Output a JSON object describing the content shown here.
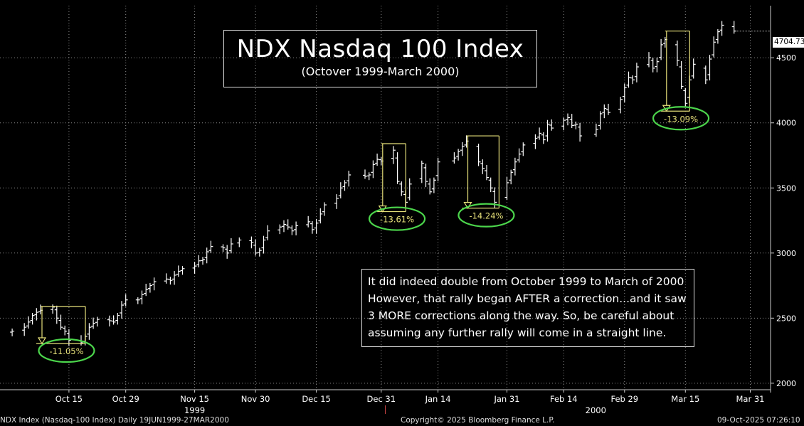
{
  "chart_data": {
    "type": "bar",
    "subtype": "ohlc",
    "title": "NDX Nasdaq 100 Index",
    "subtitle": "(Octover 1999-March 2000)",
    "ylim": [
      1950,
      4900
    ],
    "yticks": [
      2000,
      2500,
      3000,
      3500,
      4000,
      4500
    ],
    "x_tick_labels": [
      "Oct 15",
      "Oct 29",
      "Nov 15",
      "Nov 30",
      "Dec 15",
      "Dec 31",
      "Jan 14",
      "Jan 31",
      "Feb 14",
      "Feb 29",
      "Mar 15",
      "Mar 31"
    ],
    "year_labels": [
      "1999",
      "2000"
    ],
    "last_value": "4704.73",
    "corrections": [
      {
        "label": "-11.05%",
        "start_date": "1999-10-08",
        "end_date": "1999-10-18",
        "top": 2590,
        "bottom": 2305
      },
      {
        "label": "-13.61%",
        "start_date": "1999-12-31",
        "end_date": "2000-01-05",
        "top": 3840,
        "bottom": 3318
      },
      {
        "label": "-14.24%",
        "start_date": "2000-01-21",
        "end_date": "2000-01-28",
        "top": 3900,
        "bottom": 3345
      },
      {
        "label": "-13.09%",
        "start_date": "2000-03-10",
        "end_date": "2000-03-15",
        "top": 4705,
        "bottom": 4090
      }
    ],
    "series": [
      {
        "name": "NDX Index",
        "values": [
          [
            "1999-10-01",
            2400
          ],
          [
            "1999-10-04",
            2430
          ],
          [
            "1999-10-05",
            2470
          ],
          [
            "1999-10-06",
            2520
          ],
          [
            "1999-10-07",
            2545
          ],
          [
            "1999-10-08",
            2560
          ],
          [
            "1999-10-11",
            2585
          ],
          [
            "1999-10-12",
            2500
          ],
          [
            "1999-10-13",
            2430
          ],
          [
            "1999-10-14",
            2400
          ],
          [
            "1999-10-15",
            2330
          ],
          [
            "1999-10-18",
            2310
          ],
          [
            "1999-10-19",
            2360
          ],
          [
            "1999-10-20",
            2430
          ],
          [
            "1999-10-21",
            2460
          ],
          [
            "1999-10-22",
            2490
          ],
          [
            "1999-10-25",
            2480
          ],
          [
            "1999-10-26",
            2470
          ],
          [
            "1999-10-27",
            2520
          ],
          [
            "1999-10-28",
            2600
          ],
          [
            "1999-10-29",
            2640
          ],
          [
            "1999-11-01",
            2640
          ],
          [
            "1999-11-02",
            2680
          ],
          [
            "1999-11-03",
            2720
          ],
          [
            "1999-11-04",
            2750
          ],
          [
            "1999-11-05",
            2780
          ],
          [
            "1999-11-08",
            2800
          ],
          [
            "1999-11-09",
            2790
          ],
          [
            "1999-11-10",
            2830
          ],
          [
            "1999-11-11",
            2860
          ],
          [
            "1999-11-12",
            2880
          ],
          [
            "1999-11-15",
            2900
          ],
          [
            "1999-11-16",
            2940
          ],
          [
            "1999-11-17",
            2950
          ],
          [
            "1999-11-18",
            3010
          ],
          [
            "1999-11-19",
            3050
          ],
          [
            "1999-11-22",
            3040
          ],
          [
            "1999-11-23",
            3000
          ],
          [
            "1999-11-24",
            3070
          ],
          [
            "1999-11-26",
            3100
          ],
          [
            "1999-11-29",
            3080
          ],
          [
            "1999-11-30",
            3000
          ],
          [
            "1999-12-01",
            3020
          ],
          [
            "1999-12-02",
            3100
          ],
          [
            "1999-12-03",
            3170
          ],
          [
            "1999-12-06",
            3200
          ],
          [
            "1999-12-07",
            3220
          ],
          [
            "1999-12-08",
            3200
          ],
          [
            "1999-12-09",
            3170
          ],
          [
            "1999-12-10",
            3210
          ],
          [
            "1999-12-13",
            3240
          ],
          [
            "1999-12-14",
            3180
          ],
          [
            "1999-12-15",
            3230
          ],
          [
            "1999-12-16",
            3300
          ],
          [
            "1999-12-17",
            3370
          ],
          [
            "1999-12-20",
            3420
          ],
          [
            "1999-12-21",
            3500
          ],
          [
            "1999-12-22",
            3540
          ],
          [
            "1999-12-23",
            3600
          ],
          [
            "1999-12-27",
            3590
          ],
          [
            "1999-12-28",
            3600
          ],
          [
            "1999-12-29",
            3680
          ],
          [
            "1999-12-30",
            3720
          ],
          [
            "1999-12-31",
            3707
          ],
          [
            "2000-01-03",
            3790
          ],
          [
            "2000-01-04",
            3550
          ],
          [
            "2000-01-05",
            3470
          ],
          [
            "2000-01-06",
            3390
          ],
          [
            "2000-01-07",
            3530
          ],
          [
            "2000-01-10",
            3690
          ],
          [
            "2000-01-11",
            3550
          ],
          [
            "2000-01-12",
            3470
          ],
          [
            "2000-01-13",
            3560
          ],
          [
            "2000-01-14",
            3700
          ],
          [
            "2000-01-18",
            3730
          ],
          [
            "2000-01-19",
            3780
          ],
          [
            "2000-01-20",
            3820
          ],
          [
            "2000-01-21",
            3860
          ],
          [
            "2000-01-24",
            3700
          ],
          [
            "2000-01-25",
            3650
          ],
          [
            "2000-01-26",
            3580
          ],
          [
            "2000-01-27",
            3500
          ],
          [
            "2000-01-28",
            3390
          ],
          [
            "2000-01-31",
            3540
          ],
          [
            "2000-02-01",
            3620
          ],
          [
            "2000-02-02",
            3700
          ],
          [
            "2000-02-03",
            3760
          ],
          [
            "2000-02-04",
            3830
          ],
          [
            "2000-02-07",
            3880
          ],
          [
            "2000-02-08",
            3920
          ],
          [
            "2000-02-09",
            3870
          ],
          [
            "2000-02-10",
            3990
          ],
          [
            "2000-02-11",
            3960
          ],
          [
            "2000-02-14",
            4020
          ],
          [
            "2000-02-15",
            4040
          ],
          [
            "2000-02-16",
            3980
          ],
          [
            "2000-02-17",
            3990
          ],
          [
            "2000-02-18",
            3900
          ],
          [
            "2000-02-22",
            3950
          ],
          [
            "2000-02-23",
            4070
          ],
          [
            "2000-02-24",
            4110
          ],
          [
            "2000-02-25",
            4080
          ],
          [
            "2000-02-28",
            4180
          ],
          [
            "2000-02-29",
            4270
          ],
          [
            "2000-03-01",
            4350
          ],
          [
            "2000-03-02",
            4330
          ],
          [
            "2000-03-03",
            4430
          ],
          [
            "2000-03-06",
            4500
          ],
          [
            "2000-03-07",
            4420
          ],
          [
            "2000-03-08",
            4470
          ],
          [
            "2000-03-09",
            4600
          ],
          [
            "2000-03-10",
            4640
          ],
          [
            "2000-03-13",
            4480
          ],
          [
            "2000-03-14",
            4280
          ],
          [
            "2000-03-15",
            4150
          ],
          [
            "2000-03-16",
            4330
          ],
          [
            "2000-03-17",
            4450
          ],
          [
            "2000-03-20",
            4330
          ],
          [
            "2000-03-21",
            4490
          ],
          [
            "2000-03-22",
            4620
          ],
          [
            "2000-03-23",
            4700
          ],
          [
            "2000-03-24",
            4750
          ],
          [
            "2000-03-27",
            4705
          ]
        ]
      }
    ]
  },
  "annotation": {
    "text": "It did indeed double from October 1999 to March of 2000\nHowever, that rally began AFTER a correction...and it saw\n3 MORE corrections along the way.  So, be careful about\nassuming any further rally will come in a straight line."
  },
  "footer": {
    "left": "NDX Index (Nasdaq-100 Index) Daily 19JUN1999-27MAR2000",
    "center": "Copyright© 2025 Bloomberg Finance L.P.",
    "right": "09-Oct-2025 07:26:10"
  },
  "colors": {
    "background": "#000000",
    "bars": "#ffffff",
    "correction": "#e6e07a",
    "ellipse": "#4cd64c",
    "grid": "#8a8a8a"
  }
}
